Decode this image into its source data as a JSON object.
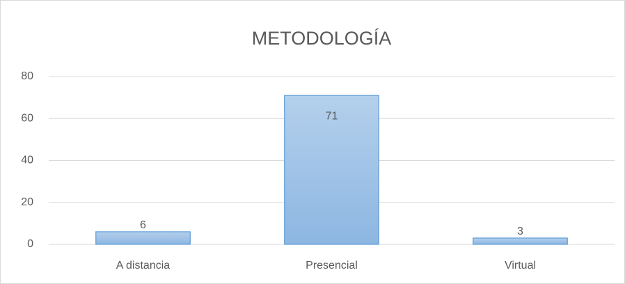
{
  "chart_data": {
    "type": "bar",
    "title": "METODOLOGÍA",
    "categories": [
      "A distancia",
      "Presencial",
      "Virtual"
    ],
    "values": [
      6,
      71,
      3
    ],
    "color": "#9dc3e6",
    "ylim": [
      0,
      80
    ],
    "yticks": [
      0,
      20,
      40,
      60,
      80
    ],
    "grid": true
  }
}
